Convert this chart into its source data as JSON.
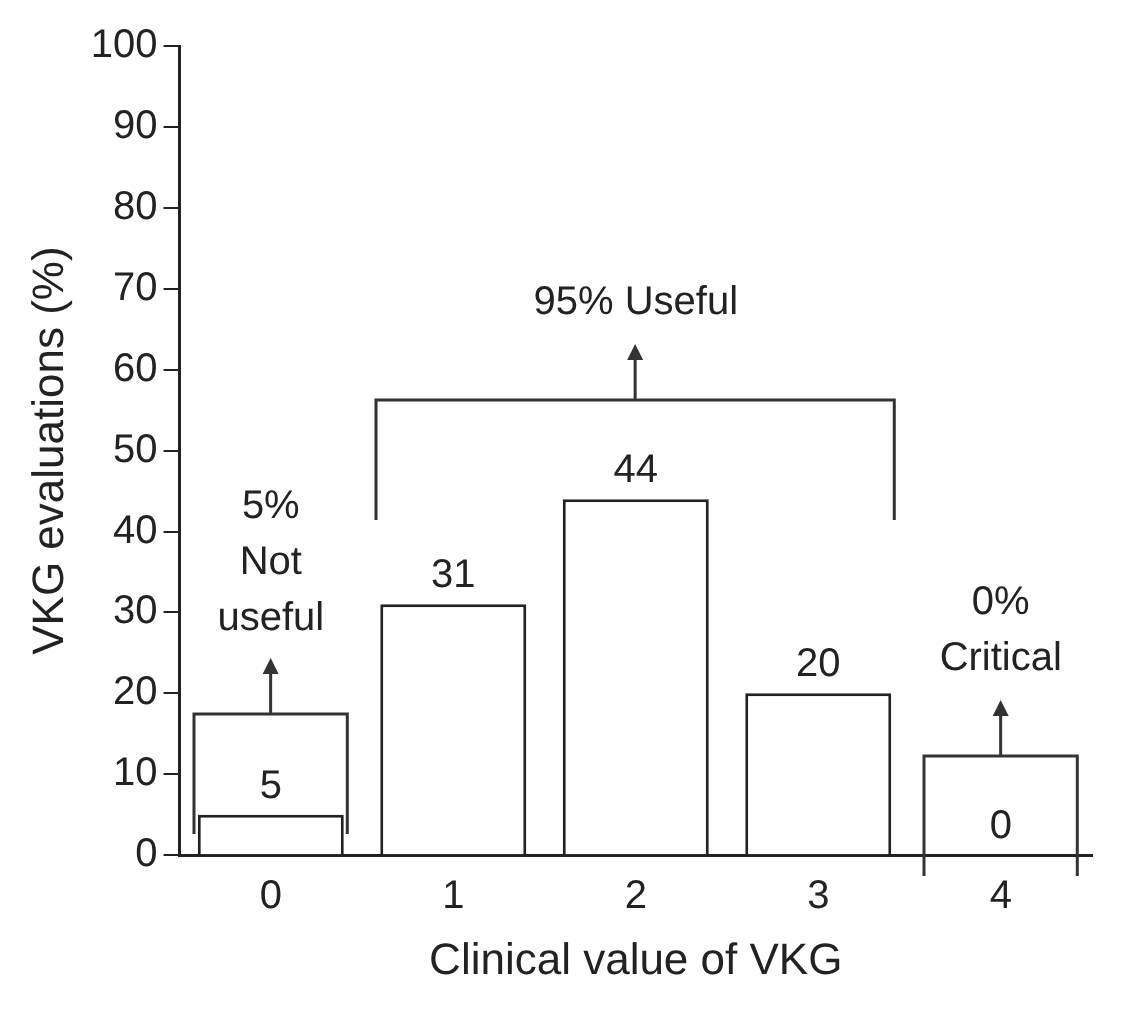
{
  "chart_data": {
    "type": "bar",
    "xlabel": "Clinical value of VKG",
    "ylabel": "VKG evaluations (%)",
    "categories": [
      "0",
      "1",
      "2",
      "3",
      "4"
    ],
    "values": [
      5,
      31,
      44,
      20,
      0
    ],
    "color": "#ffffff",
    "ylim": [
      0,
      100
    ],
    "yticks": [
      0,
      10,
      20,
      30,
      40,
      50,
      60,
      70,
      80,
      90,
      100
    ],
    "grid": false,
    "legend": false,
    "data_labels": true,
    "annotations": [
      "5% Not useful",
      "95% Useful",
      "0% Critical"
    ]
  }
}
